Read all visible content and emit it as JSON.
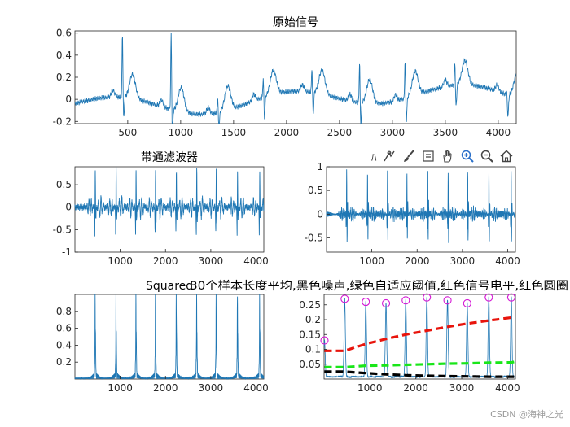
{
  "figure": {
    "watermark": "CSDN @海神之光",
    "toolbar": {
      "text": "ﾊ",
      "icons": [
        "data-tip-icon",
        "brush-icon",
        "pan-window-icon",
        "hand-pan-icon",
        "zoom-in-icon",
        "zoom-out-icon",
        "home-icon"
      ]
    }
  },
  "colors": {
    "signal": "#1f77b4",
    "red": "#e8140c",
    "green": "#19e619",
    "black": "#000000",
    "magenta": "#d417d4",
    "axis": "#262626"
  },
  "chart_data": [
    {
      "id": "raw",
      "type": "line",
      "title": "原始信号",
      "xlim": [
        1,
        4170
      ],
      "ylim": [
        -0.22,
        0.62
      ],
      "xticks": [
        500,
        1000,
        1500,
        2000,
        2500,
        3000,
        3500,
        4000
      ],
      "yticks": [
        -0.2,
        0,
        0.2,
        0.4,
        0.6
      ],
      "ytick_labels": [
        "-0.2",
        "0",
        "0.2",
        "0.4",
        "0.6"
      ],
      "beats_x": [
        450,
        910,
        1350,
        1780,
        2240,
        2690,
        3120,
        3590,
        4080
      ],
      "r_peaks_y": [
        0.6,
        0.6,
        0.03,
        0.2,
        0.3,
        0.35,
        0.36,
        0.34,
        0.07
      ],
      "series": [
        {
          "name": "ECG"
        }
      ]
    },
    {
      "id": "bandpass",
      "type": "line",
      "title": "带通滤波器",
      "xlim": [
        1,
        4170
      ],
      "ylim": [
        -1,
        0.9
      ],
      "xticks": [
        1000,
        2000,
        3000,
        4000
      ],
      "yticks": [
        -1,
        -0.5,
        0,
        0.5
      ],
      "ytick_labels": [
        "-1",
        "-0.5",
        "0",
        "0.5"
      ],
      "beats_x": [
        450,
        910,
        1350,
        1780,
        2240,
        2690,
        3120,
        3590,
        4080
      ],
      "peak_y": 0.88,
      "trough_y": -0.62
    },
    {
      "id": "derivative",
      "type": "line",
      "title": "",
      "xlim": [
        1,
        4170
      ],
      "ylim": [
        -0.8,
        1
      ],
      "xticks": [
        1000,
        2000,
        3000,
        4000
      ],
      "yticks": [
        -0.5,
        0,
        0.5,
        1
      ],
      "ytick_labels": [
        "-0.5",
        "0",
        "0.5",
        "1"
      ],
      "beats_x": [
        450,
        910,
        1350,
        1780,
        2240,
        2690,
        3120,
        3590,
        4080
      ],
      "peak_y": 1.0,
      "trough_y": -0.65
    },
    {
      "id": "squared",
      "type": "line",
      "title": "Squared",
      "xlim": [
        1,
        4170
      ],
      "ylim": [
        0,
        1
      ],
      "xticks": [
        1000,
        2000,
        3000,
        4000
      ],
      "yticks": [
        0.2,
        0.4,
        0.6,
        0.8
      ],
      "ytick_labels": [
        "0.2",
        "0.4",
        "0.6",
        "0.8"
      ],
      "beats_x": [
        450,
        910,
        1350,
        1780,
        2240,
        2690,
        3120,
        3590,
        4080
      ],
      "peak_y": 0.95
    },
    {
      "id": "thresholds",
      "type": "line",
      "title": "30个样本长度平均,黑色噪声,绿色自适应阈值,红色信号电平,红色圆圈",
      "xlim": [
        1,
        4170
      ],
      "ylim": [
        0,
        0.285
      ],
      "xticks": [
        1000,
        2000,
        3000,
        4000
      ],
      "yticks": [
        0.05,
        0.1,
        0.15,
        0.2,
        0.25
      ],
      "ytick_labels": [
        "0.05",
        "0.1",
        "0.15",
        "0.2",
        "0.25"
      ],
      "peaks_x": [
        10,
        450,
        910,
        1350,
        1780,
        2240,
        2690,
        3120,
        3590,
        4080
      ],
      "peaks_y": [
        0.13,
        0.27,
        0.26,
        0.255,
        0.265,
        0.275,
        0.265,
        0.255,
        0.275,
        0.275
      ],
      "signal_level": [
        0.095,
        0.095,
        0.118,
        0.135,
        0.15,
        0.163,
        0.176,
        0.187,
        0.197,
        0.207,
        0.21
      ],
      "adaptive_threshold": [
        0.04,
        0.04,
        0.045,
        0.046,
        0.048,
        0.05,
        0.052,
        0.053,
        0.055,
        0.056,
        0.058
      ],
      "noise_level": [
        0.025,
        0.025,
        0.02,
        0.016,
        0.013,
        0.011,
        0.01,
        0.009,
        0.008,
        0.008,
        0.008
      ],
      "level_x": [
        10,
        450,
        910,
        1350,
        1780,
        2240,
        2690,
        3120,
        3590,
        4080,
        4150
      ]
    }
  ]
}
